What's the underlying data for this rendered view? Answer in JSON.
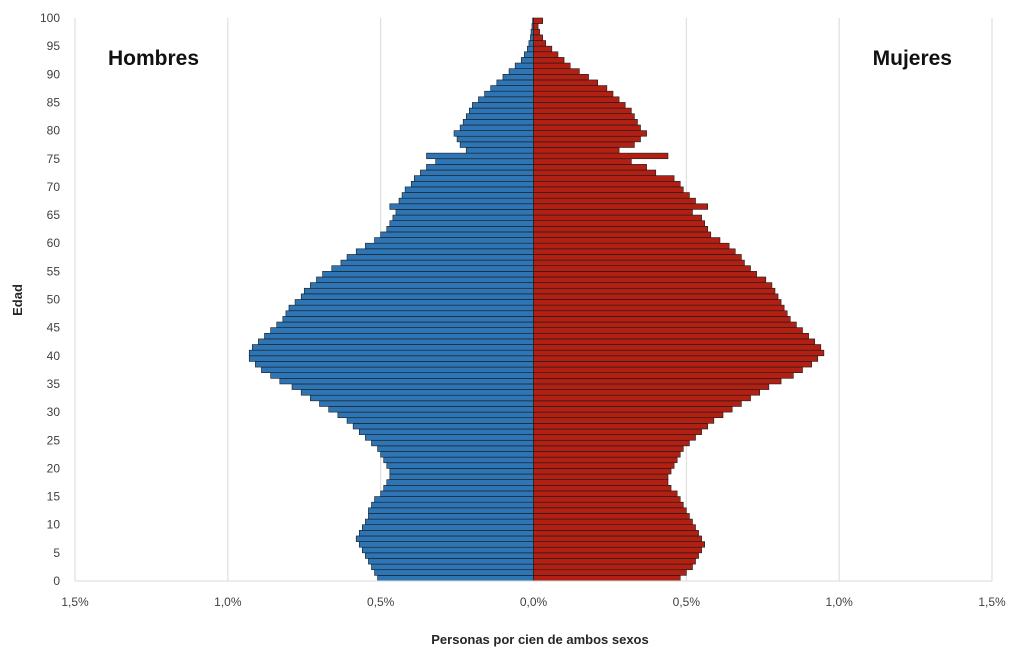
{
  "chart_data": {
    "type": "bar",
    "orientation": "horizontal-population-pyramid",
    "xlabel": "Personas por cien de ambos sexos",
    "ylabel": "Edad",
    "xlim": [
      -1.5,
      1.5
    ],
    "ylim": [
      0,
      100
    ],
    "x_ticks": [
      {
        "value": -1.5,
        "label": "1,5%"
      },
      {
        "value": -1.0,
        "label": "1,0%"
      },
      {
        "value": -0.5,
        "label": "0,5%"
      },
      {
        "value": 0.0,
        "label": "0,0%"
      },
      {
        "value": 0.5,
        "label": "0,5%"
      },
      {
        "value": 1.0,
        "label": "1,0%"
      },
      {
        "value": 1.5,
        "label": "1,5%"
      }
    ],
    "y_ticks": [
      0,
      5,
      10,
      15,
      20,
      25,
      30,
      35,
      40,
      45,
      50,
      55,
      60,
      65,
      70,
      75,
      80,
      85,
      90,
      95,
      100
    ],
    "grid": {
      "vertical": true,
      "horizontal": false
    },
    "colors": {
      "hombres": "#2e75b6",
      "mujeres": "#b22014",
      "edge": "#1a1a1a",
      "grid": "#d9d9d9"
    },
    "side_labels": {
      "left": "Hombres",
      "right": "Mujeres"
    },
    "ages": [
      0,
      1,
      2,
      3,
      4,
      5,
      6,
      7,
      8,
      9,
      10,
      11,
      12,
      13,
      14,
      15,
      16,
      17,
      18,
      19,
      20,
      21,
      22,
      23,
      24,
      25,
      26,
      27,
      28,
      29,
      30,
      31,
      32,
      33,
      34,
      35,
      36,
      37,
      38,
      39,
      40,
      41,
      42,
      43,
      44,
      45,
      46,
      47,
      48,
      49,
      50,
      51,
      52,
      53,
      54,
      55,
      56,
      57,
      58,
      59,
      60,
      61,
      62,
      63,
      64,
      65,
      66,
      67,
      68,
      69,
      70,
      71,
      72,
      73,
      74,
      75,
      76,
      77,
      78,
      79,
      80,
      81,
      82,
      83,
      84,
      85,
      86,
      87,
      88,
      89,
      90,
      91,
      92,
      93,
      94,
      95,
      96,
      97,
      98,
      99
    ],
    "series": [
      {
        "name": "Hombres",
        "values": [
          0.51,
          0.52,
          0.53,
          0.54,
          0.55,
          0.56,
          0.57,
          0.58,
          0.57,
          0.56,
          0.55,
          0.54,
          0.54,
          0.53,
          0.52,
          0.5,
          0.49,
          0.48,
          0.47,
          0.47,
          0.48,
          0.49,
          0.5,
          0.51,
          0.53,
          0.55,
          0.57,
          0.59,
          0.61,
          0.64,
          0.67,
          0.7,
          0.73,
          0.76,
          0.79,
          0.83,
          0.86,
          0.89,
          0.91,
          0.93,
          0.93,
          0.92,
          0.9,
          0.88,
          0.86,
          0.84,
          0.82,
          0.81,
          0.8,
          0.78,
          0.76,
          0.75,
          0.73,
          0.71,
          0.69,
          0.66,
          0.63,
          0.61,
          0.58,
          0.55,
          0.52,
          0.5,
          0.48,
          0.47,
          0.46,
          0.45,
          0.47,
          0.44,
          0.43,
          0.42,
          0.4,
          0.39,
          0.37,
          0.35,
          0.32,
          0.35,
          0.22,
          0.24,
          0.25,
          0.26,
          0.24,
          0.23,
          0.22,
          0.21,
          0.2,
          0.18,
          0.16,
          0.14,
          0.12,
          0.1,
          0.08,
          0.06,
          0.04,
          0.03,
          0.02,
          0.015,
          0.01,
          0.008,
          0.005,
          0.003
        ]
      },
      {
        "name": "Mujeres",
        "values": [
          0.48,
          0.5,
          0.52,
          0.53,
          0.54,
          0.55,
          0.56,
          0.55,
          0.54,
          0.53,
          0.52,
          0.51,
          0.5,
          0.49,
          0.48,
          0.47,
          0.45,
          0.44,
          0.44,
          0.45,
          0.46,
          0.47,
          0.48,
          0.49,
          0.51,
          0.53,
          0.55,
          0.57,
          0.59,
          0.62,
          0.65,
          0.68,
          0.71,
          0.74,
          0.77,
          0.81,
          0.85,
          0.88,
          0.91,
          0.93,
          0.95,
          0.94,
          0.92,
          0.9,
          0.88,
          0.86,
          0.84,
          0.83,
          0.82,
          0.81,
          0.8,
          0.79,
          0.78,
          0.76,
          0.73,
          0.71,
          0.69,
          0.68,
          0.66,
          0.64,
          0.61,
          0.58,
          0.57,
          0.56,
          0.55,
          0.52,
          0.57,
          0.53,
          0.51,
          0.49,
          0.48,
          0.46,
          0.4,
          0.37,
          0.32,
          0.44,
          0.28,
          0.33,
          0.35,
          0.37,
          0.35,
          0.34,
          0.33,
          0.32,
          0.3,
          0.28,
          0.26,
          0.24,
          0.21,
          0.18,
          0.15,
          0.12,
          0.1,
          0.08,
          0.06,
          0.04,
          0.03,
          0.02,
          0.015,
          0.03
        ]
      }
    ]
  }
}
